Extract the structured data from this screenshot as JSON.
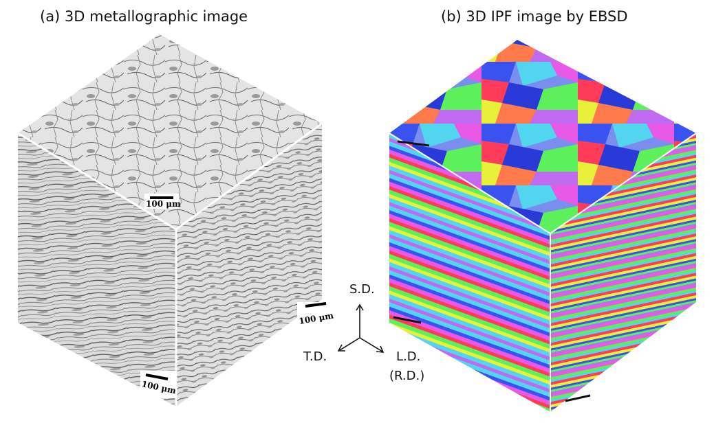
{
  "titles": {
    "a": "(a) 3D metallographic image",
    "b": "(b) 3D IPF image by EBSD"
  },
  "scale_bars": {
    "a_top": "100 μm",
    "a_right": "100 μm",
    "a_left": "100 μm"
  },
  "axes": {
    "sd": "S.D.",
    "td": "T.D.",
    "ld": "L.D.",
    "rd": "(R.D.)"
  },
  "colors": {
    "ipf_red": "#ff3b5a",
    "ipf_green": "#5cf05a",
    "ipf_blue": "#3a52f0",
    "ipf_magenta": "#e85ae6",
    "ipf_cyan": "#52d6f0",
    "ipf_yellow": "#e8f03a"
  }
}
